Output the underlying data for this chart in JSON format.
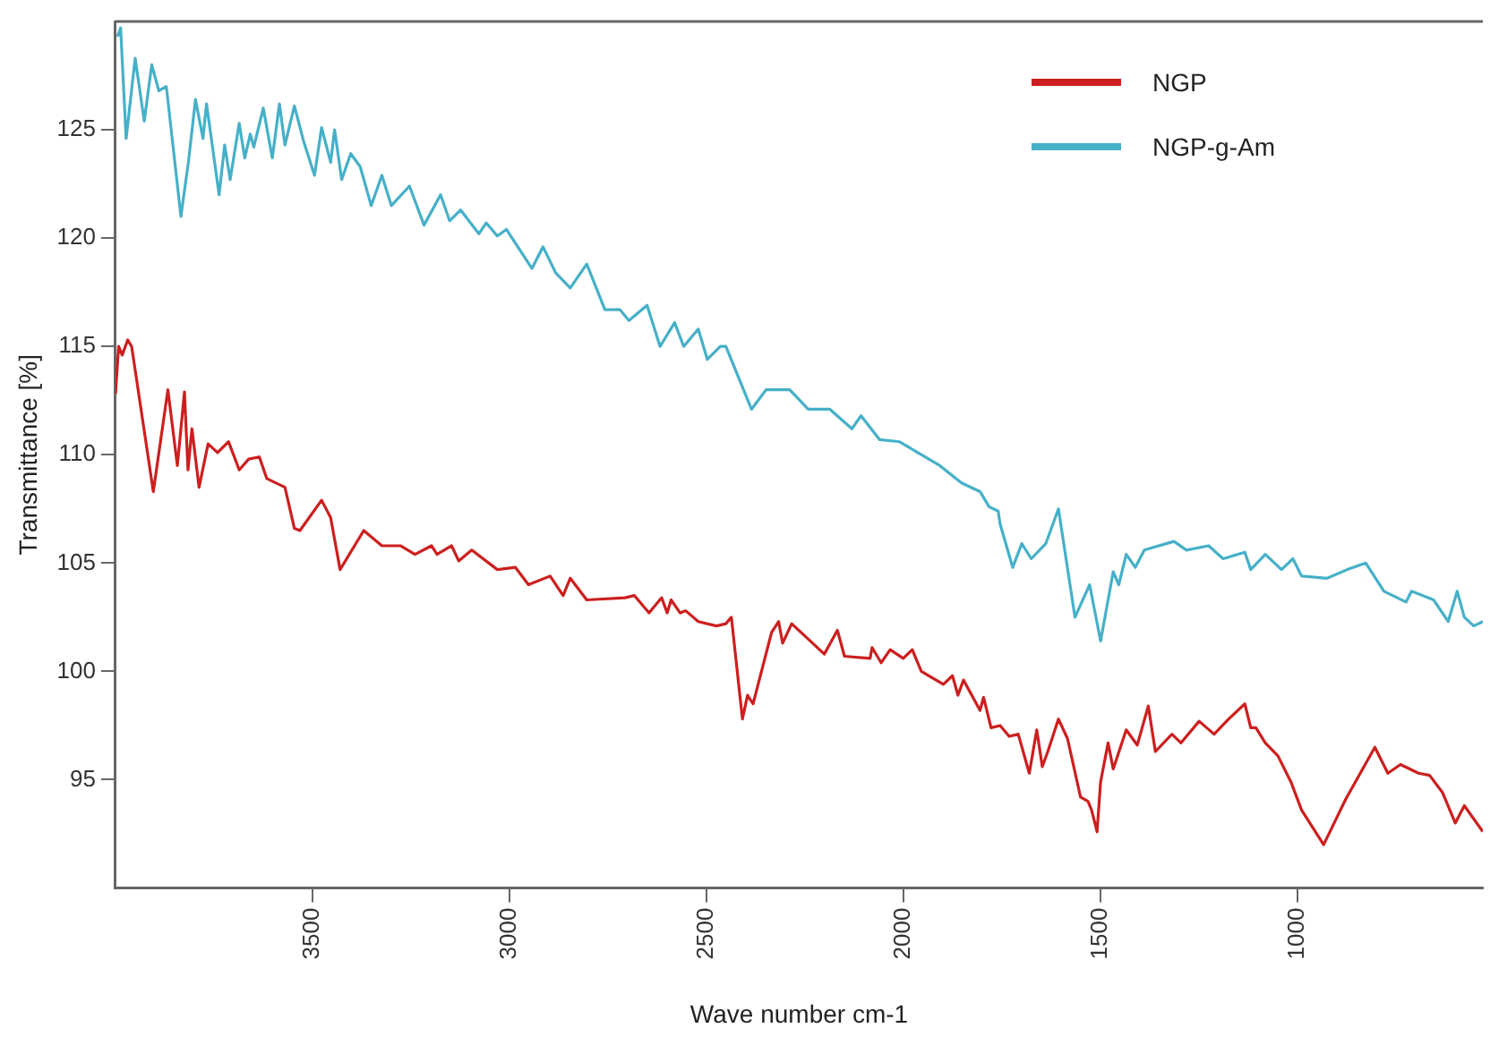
{
  "chart_data": {
    "type": "line",
    "xlabel": "Wave number cm-1",
    "ylabel": "Transmittance [%]",
    "xlim": [
      4000,
      530
    ],
    "xticks": [
      3500,
      3000,
      2500,
      2000,
      1500,
      1000
    ],
    "ylim": [
      90,
      130
    ],
    "yticks": [
      95,
      100,
      105,
      110,
      115,
      120,
      125
    ],
    "grid": false,
    "legend": "top right",
    "marker": "none",
    "line_style": "solid",
    "series": [
      {
        "name": "NGP",
        "color": "#cc1f1f",
        "x": [
          4000,
          3992,
          3983,
          3969,
          3959,
          3904,
          3867,
          3843,
          3825,
          3816,
          3806,
          3788,
          3765,
          3741,
          3713,
          3686,
          3662,
          3635,
          3616,
          3570,
          3546,
          3532,
          3477,
          3454,
          3430,
          3370,
          3324,
          3277,
          3240,
          3198,
          3184,
          3147,
          3129,
          3096,
          3031,
          2985,
          2952,
          2897,
          2864,
          2846,
          2804,
          2707,
          2683,
          2646,
          2614,
          2600,
          2590,
          2567,
          2553,
          2521,
          2475,
          2451,
          2437,
          2409,
          2396,
          2382,
          2335,
          2317,
          2307,
          2284,
          2201,
          2168,
          2150,
          2085,
          2080,
          2057,
          2034,
          2001,
          1978,
          1955,
          1899,
          1876,
          1862,
          1848,
          1806,
          1797,
          1778,
          1755,
          1732,
          1709,
          1681,
          1662,
          1648,
          1634,
          1607,
          1584,
          1551,
          1532,
          1523,
          1509,
          1500,
          1481,
          1468,
          1435,
          1407,
          1379,
          1361,
          1319,
          1296,
          1250,
          1212,
          1175,
          1134,
          1119,
          1106,
          1082,
          1050,
          1017,
          990,
          934,
          878,
          804,
          771,
          739,
          693,
          665,
          632,
          600,
          577,
          530
        ],
        "values": [
          112.8,
          115.0,
          114.6,
          115.3,
          115.0,
          108.3,
          113.0,
          109.5,
          112.9,
          109.3,
          111.2,
          108.5,
          110.5,
          110.1,
          110.6,
          109.3,
          109.8,
          109.9,
          108.9,
          108.5,
          106.6,
          106.5,
          107.9,
          107.1,
          104.7,
          106.5,
          105.8,
          105.8,
          105.4,
          105.8,
          105.4,
          105.8,
          105.1,
          105.6,
          104.7,
          104.8,
          104.0,
          104.4,
          103.5,
          104.3,
          103.3,
          103.4,
          103.5,
          102.7,
          103.4,
          102.7,
          103.3,
          102.7,
          102.8,
          102.3,
          102.1,
          102.2,
          102.5,
          97.8,
          98.9,
          98.5,
          101.8,
          102.3,
          101.3,
          102.2,
          100.8,
          101.9,
          100.7,
          100.6,
          101.1,
          100.4,
          101.0,
          100.6,
          101.0,
          100.0,
          99.4,
          99.8,
          98.9,
          99.6,
          98.2,
          98.8,
          97.4,
          97.5,
          97.0,
          97.1,
          95.3,
          97.3,
          95.6,
          96.3,
          97.8,
          96.9,
          94.2,
          94.0,
          93.6,
          92.6,
          94.9,
          96.7,
          95.5,
          97.3,
          96.6,
          98.4,
          96.3,
          97.1,
          96.7,
          97.7,
          97.1,
          97.8,
          98.5,
          97.4,
          97.4,
          96.7,
          96.1,
          94.9,
          93.6,
          92.0,
          94.1,
          96.5,
          95.3,
          95.7,
          95.3,
          95.2,
          94.4,
          93.0,
          93.8,
          92.6
        ]
      },
      {
        "name": "NGP-g-Am",
        "color": "#46b0c8",
        "x": [
          3995,
          3987,
          3973,
          3950,
          3927,
          3908,
          3890,
          3871,
          3834,
          3815,
          3797,
          3778,
          3769,
          3737,
          3723,
          3709,
          3686,
          3672,
          3658,
          3649,
          3625,
          3602,
          3584,
          3570,
          3546,
          3523,
          3495,
          3477,
          3454,
          3444,
          3426,
          3403,
          3379,
          3351,
          3324,
          3300,
          3254,
          3217,
          3175,
          3152,
          3124,
          3078,
          3059,
          3031,
          3008,
          2943,
          2915,
          2883,
          2846,
          2804,
          2758,
          2720,
          2697,
          2651,
          2618,
          2581,
          2558,
          2521,
          2498,
          2465,
          2451,
          2386,
          2349,
          2289,
          2242,
          2187,
          2131,
          2108,
          2061,
          2010,
          1964,
          1908,
          1853,
          1806,
          1783,
          1760,
          1755,
          1723,
          1700,
          1676,
          1639,
          1607,
          1565,
          1528,
          1500,
          1468,
          1454,
          1435,
          1412,
          1389,
          1314,
          1282,
          1226,
          1189,
          1134,
          1119,
          1082,
          1041,
          1012,
          990,
          925,
          874,
          827,
          781,
          725,
          711,
          655,
          618,
          595,
          577,
          553,
          530
        ],
        "values": [
          129.3,
          129.7,
          124.6,
          128.3,
          125.4,
          128.0,
          126.8,
          127.0,
          121.0,
          123.5,
          126.4,
          124.6,
          126.2,
          122.0,
          124.3,
          122.7,
          125.3,
          123.7,
          124.8,
          124.2,
          126.0,
          123.7,
          126.2,
          124.3,
          126.1,
          124.5,
          122.9,
          125.1,
          123.5,
          125.0,
          122.7,
          123.9,
          123.3,
          121.5,
          122.9,
          121.5,
          122.4,
          120.6,
          122.0,
          120.8,
          121.3,
          120.2,
          120.7,
          120.1,
          120.4,
          118.6,
          119.6,
          118.4,
          117.7,
          118.8,
          116.7,
          116.7,
          116.2,
          116.9,
          115.0,
          116.1,
          115.0,
          115.8,
          114.4,
          115.0,
          115.0,
          112.1,
          113.0,
          113.0,
          112.1,
          112.1,
          111.2,
          111.8,
          110.7,
          110.6,
          110.1,
          109.5,
          108.7,
          108.3,
          107.6,
          107.4,
          106.8,
          104.8,
          105.9,
          105.2,
          105.9,
          107.5,
          102.5,
          104.0,
          101.4,
          104.6,
          104.0,
          105.4,
          104.8,
          105.6,
          106.0,
          105.6,
          105.8,
          105.2,
          105.5,
          104.7,
          105.4,
          104.7,
          105.2,
          104.4,
          104.3,
          104.7,
          105.0,
          103.7,
          103.2,
          103.7,
          103.3,
          102.3,
          103.7,
          102.5,
          102.1,
          102.3
        ]
      }
    ]
  }
}
